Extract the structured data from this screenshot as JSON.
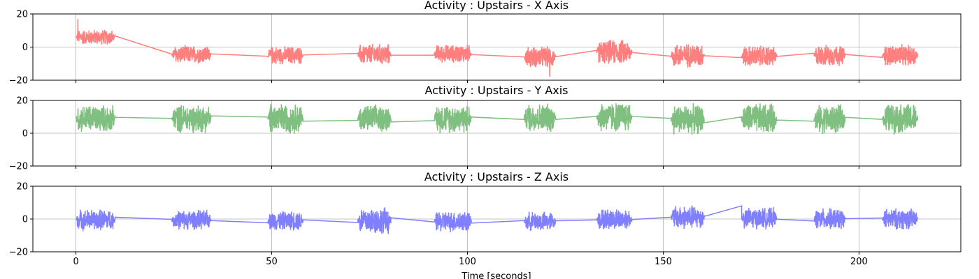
{
  "chart_data": [
    {
      "type": "line",
      "title": "Activity : Upstairs - X Axis",
      "xlabel": "",
      "ylabel": "",
      "xlim": [
        -11,
        226
      ],
      "ylim": [
        -20,
        20
      ],
      "xticks": [
        0,
        50,
        100,
        150,
        200
      ],
      "yticks": [
        -20,
        0,
        20
      ],
      "show_xtick_labels": false,
      "grid": true,
      "color": "#ff7f7f",
      "series": [
        {
          "bursts": [
            {
              "start": 0.0,
              "end": 10.0,
              "center": 6.0,
              "amp": 5.0
            },
            {
              "start": 24.5,
              "end": 34.5,
              "center": -4.5,
              "amp": 6.0
            },
            {
              "start": 49.0,
              "end": 58.0,
              "center": -5.0,
              "amp": 6.0
            },
            {
              "start": 72.0,
              "end": 80.5,
              "center": -4.5,
              "amp": 7.0
            },
            {
              "start": 91.5,
              "end": 101.0,
              "center": -4.0,
              "amp": 6.0
            },
            {
              "start": 114.5,
              "end": 122.5,
              "center": -6.0,
              "amp": 7.0
            },
            {
              "start": 133.0,
              "end": 142.0,
              "center": -3.0,
              "amp": 8.0
            },
            {
              "start": 152.0,
              "end": 160.5,
              "center": -5.0,
              "amp": 8.0
            },
            {
              "start": 170.0,
              "end": 179.0,
              "center": -5.5,
              "amp": 7.0
            },
            {
              "start": 188.5,
              "end": 196.5,
              "center": -5.0,
              "amp": 7.0
            },
            {
              "start": 206.0,
              "end": 215.0,
              "center": -5.0,
              "amp": 7.0
            }
          ],
          "annotations": [
            {
              "x": 0.5,
              "y": 17
            },
            {
              "x": 121.0,
              "y": -18
            }
          ]
        }
      ]
    },
    {
      "type": "line",
      "title": "Activity : Upstairs - Y Axis",
      "xlabel": "",
      "ylabel": "",
      "xlim": [
        -11,
        226
      ],
      "ylim": [
        -20,
        20
      ],
      "xticks": [
        0,
        50,
        100,
        150,
        200
      ],
      "yticks": [
        -20,
        0,
        20
      ],
      "show_xtick_labels": false,
      "grid": true,
      "color": "#7fbf7f",
      "series": [
        {
          "bursts": [
            {
              "start": 0.0,
              "end": 10.0,
              "center": 9.0,
              "amp": 9.0
            },
            {
              "start": 24.5,
              "end": 34.5,
              "center": 9.0,
              "amp": 9.5
            },
            {
              "start": 49.0,
              "end": 58.0,
              "center": 9.0,
              "amp": 10.0
            },
            {
              "start": 72.0,
              "end": 80.5,
              "center": 9.0,
              "amp": 9.0
            },
            {
              "start": 91.5,
              "end": 101.0,
              "center": 9.0,
              "amp": 9.5
            },
            {
              "start": 114.5,
              "end": 122.5,
              "center": 9.5,
              "amp": 9.5
            },
            {
              "start": 133.0,
              "end": 142.0,
              "center": 10.0,
              "amp": 10.0
            },
            {
              "start": 152.0,
              "end": 160.5,
              "center": 8.5,
              "amp": 10.0
            },
            {
              "start": 170.0,
              "end": 179.0,
              "center": 9.0,
              "amp": 10.0
            },
            {
              "start": 188.5,
              "end": 196.5,
              "center": 8.5,
              "amp": 9.5
            },
            {
              "start": 206.0,
              "end": 215.0,
              "center": 9.0,
              "amp": 10.0
            }
          ],
          "annotations": [
            {
              "x": 153.5,
              "y": 7
            }
          ]
        }
      ]
    },
    {
      "type": "line",
      "title": "Activity : Upstairs - Z Axis",
      "xlabel": "Time [seconds]",
      "ylabel": "",
      "xlim": [
        -11,
        226
      ],
      "ylim": [
        -20,
        20
      ],
      "xticks": [
        0,
        50,
        100,
        150,
        200
      ],
      "yticks": [
        -20,
        0,
        20
      ],
      "show_xtick_labels": true,
      "grid": true,
      "color": "#7f7fff",
      "series": [
        {
          "bursts": [
            {
              "start": 0.0,
              "end": 10.0,
              "center": -0.5,
              "amp": 7.0
            },
            {
              "start": 24.5,
              "end": 34.5,
              "center": -0.5,
              "amp": 6.5
            },
            {
              "start": 49.0,
              "end": 58.0,
              "center": -1.0,
              "amp": 6.5
            },
            {
              "start": 72.0,
              "end": 80.5,
              "center": -1.0,
              "amp": 9.0
            },
            {
              "start": 91.5,
              "end": 101.0,
              "center": -1.5,
              "amp": 7.0
            },
            {
              "start": 114.5,
              "end": 122.5,
              "center": -1.5,
              "amp": 6.5
            },
            {
              "start": 133.0,
              "end": 142.0,
              "center": 0.0,
              "amp": 7.0
            },
            {
              "start": 152.0,
              "end": 160.5,
              "center": 1.0,
              "amp": 8.0
            },
            {
              "start": 170.0,
              "end": 179.0,
              "center": 0.5,
              "amp": 7.0
            },
            {
              "start": 188.5,
              "end": 196.5,
              "center": 0.0,
              "amp": 7.0
            },
            {
              "start": 206.0,
              "end": 215.0,
              "center": 0.0,
              "amp": 7.0
            }
          ],
          "annotations": [
            {
              "x": 170.0,
              "y": 8
            }
          ]
        }
      ]
    }
  ]
}
